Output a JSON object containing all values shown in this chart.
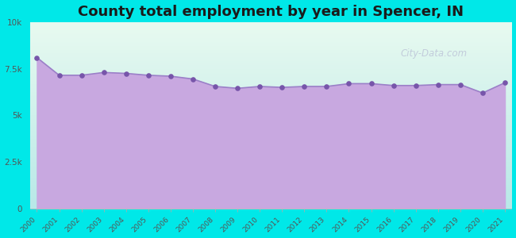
{
  "title": "County total employment by year in Spencer, IN",
  "years": [
    2000,
    2001,
    2002,
    2003,
    2004,
    2005,
    2006,
    2007,
    2008,
    2009,
    2010,
    2011,
    2012,
    2013,
    2014,
    2015,
    2016,
    2017,
    2018,
    2019,
    2020,
    2021
  ],
  "values": [
    8100,
    7150,
    7150,
    7300,
    7250,
    7150,
    7100,
    6950,
    6550,
    6450,
    6550,
    6500,
    6550,
    6550,
    6700,
    6700,
    6600,
    6600,
    6650,
    6650,
    6200,
    6750
  ],
  "line_color": "#9b80c8",
  "fill_color": "#c8a8e0",
  "marker_color": "#7755aa",
  "bg_color": "#00e8e8",
  "plot_bg_top": "#e8faf0",
  "plot_bg_bottom": "#b8e8e8",
  "ylim": [
    0,
    10000
  ],
  "yticks": [
    0,
    2500,
    5000,
    7500,
    10000
  ],
  "ytick_labels": [
    "0",
    "2.5k",
    "5k",
    "7.5k",
    "10k"
  ],
  "title_fontsize": 13,
  "watermark": "City-Data.com",
  "tick_label_color": "#555555"
}
